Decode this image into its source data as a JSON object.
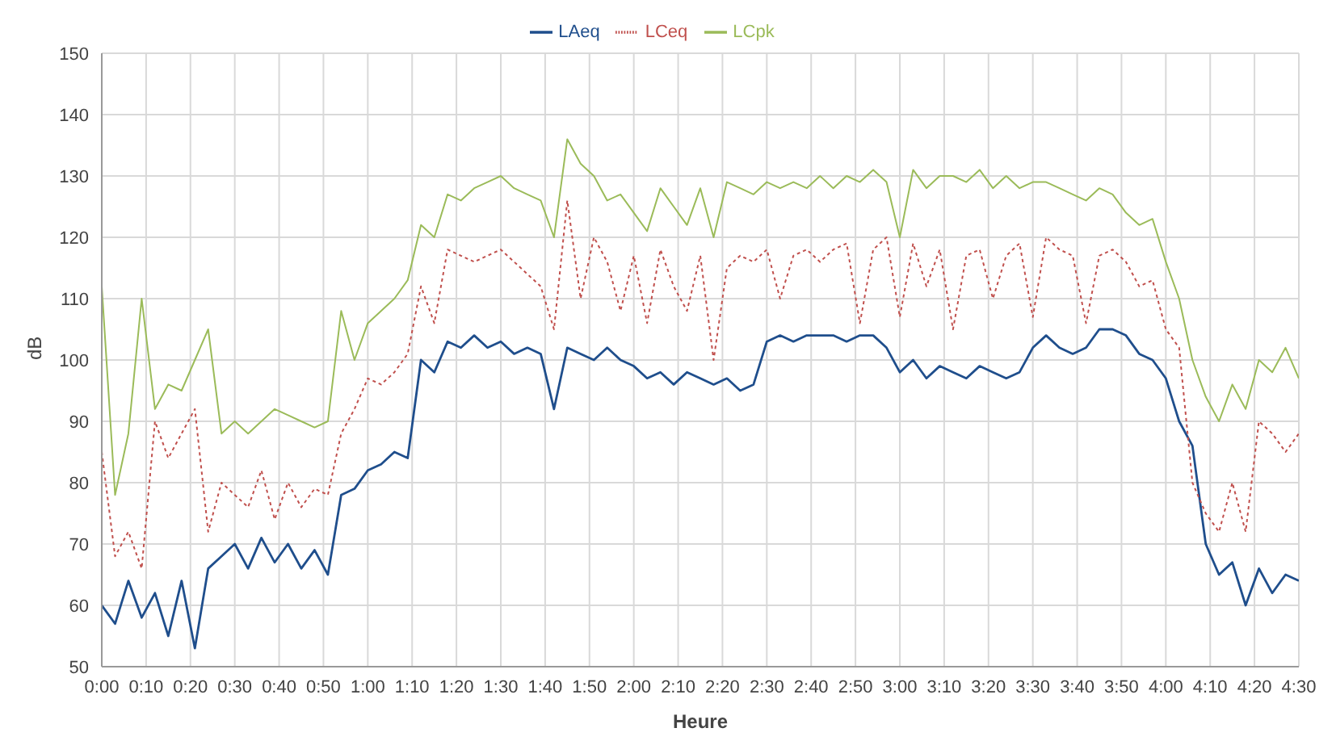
{
  "chart_data": {
    "type": "line",
    "xlabel": "Heure",
    "ylabel": "dB",
    "legend": "top",
    "grid": true,
    "x": [
      0,
      0.05,
      0.1,
      0.15,
      0.2,
      0.25,
      0.3,
      0.35,
      0.4,
      0.45,
      0.5,
      0.55,
      0.6,
      0.65,
      0.7,
      0.75,
      0.8,
      0.85,
      0.9,
      0.95,
      1,
      1.05,
      1.1,
      1.15,
      1.2,
      1.25,
      1.3,
      1.35,
      1.4,
      1.45,
      1.5,
      1.55,
      1.6,
      1.65,
      1.7,
      1.75,
      1.8,
      1.85,
      1.9,
      1.95,
      2,
      2.05,
      2.1,
      2.15,
      2.2,
      2.25,
      2.3,
      2.35,
      2.4,
      2.45,
      2.5,
      2.55,
      2.6,
      2.65,
      2.7,
      2.75,
      2.8,
      2.85,
      2.9,
      2.95,
      3,
      3.05,
      3.1,
      3.15,
      3.2,
      3.25,
      3.3,
      3.35,
      3.4,
      3.45,
      3.5,
      3.55,
      3.6,
      3.65,
      3.7,
      3.75,
      3.8,
      3.85,
      3.9,
      3.95,
      4,
      4.05,
      4.1,
      4.15,
      4.2,
      4.25,
      4.3,
      4.35,
      4.4,
      4.45,
      4.5
    ],
    "series": [
      {
        "name": "LAeq",
        "color": "#1f4e8c",
        "line_style": "solid",
        "values": [
          60,
          57,
          64,
          58,
          62,
          55,
          64,
          53,
          66,
          68,
          70,
          66,
          71,
          67,
          70,
          66,
          69,
          65,
          78,
          79,
          82,
          83,
          85,
          84,
          100,
          98,
          103,
          102,
          104,
          102,
          103,
          101,
          102,
          101,
          92,
          102,
          101,
          100,
          102,
          100,
          99,
          97,
          98,
          96,
          98,
          97,
          96,
          97,
          95,
          96,
          103,
          104,
          103,
          104,
          104,
          104,
          103,
          104,
          104,
          102,
          98,
          100,
          97,
          99,
          98,
          97,
          99,
          98,
          97,
          98,
          102,
          104,
          102,
          101,
          102,
          105,
          105,
          104,
          101,
          100,
          97,
          90,
          86,
          70,
          65,
          67,
          60,
          66,
          62,
          65,
          64
        ]
      },
      {
        "name": "LCeq",
        "color": "#c0504d",
        "line_style": "dotted",
        "values": [
          85,
          68,
          72,
          66,
          90,
          84,
          88,
          92,
          72,
          80,
          78,
          76,
          82,
          74,
          80,
          76,
          79,
          78,
          88,
          92,
          97,
          96,
          98,
          101,
          112,
          106,
          118,
          117,
          116,
          117,
          118,
          116,
          114,
          112,
          105,
          126,
          110,
          120,
          116,
          108,
          117,
          106,
          118,
          112,
          108,
          117,
          100,
          115,
          117,
          116,
          118,
          110,
          117,
          118,
          116,
          118,
          119,
          106,
          118,
          120,
          107,
          119,
          112,
          118,
          105,
          117,
          118,
          110,
          117,
          119,
          107,
          120,
          118,
          117,
          106,
          117,
          118,
          116,
          112,
          113,
          105,
          102,
          80,
          75,
          72,
          80,
          72,
          90,
          88,
          85,
          88
        ]
      },
      {
        "name": "LCpk",
        "color": "#9bbb59",
        "line_style": "solid",
        "values": [
          112,
          78,
          88,
          110,
          92,
          96,
          95,
          100,
          105,
          88,
          90,
          88,
          90,
          92,
          91,
          90,
          89,
          90,
          108,
          100,
          106,
          108,
          110,
          113,
          122,
          120,
          127,
          126,
          128,
          129,
          130,
          128,
          127,
          126,
          120,
          136,
          132,
          130,
          126,
          127,
          124,
          121,
          128,
          125,
          122,
          128,
          120,
          129,
          128,
          127,
          129,
          128,
          129,
          128,
          130,
          128,
          130,
          129,
          131,
          129,
          120,
          131,
          128,
          130,
          130,
          129,
          131,
          128,
          130,
          128,
          129,
          129,
          128,
          127,
          126,
          128,
          127,
          124,
          122,
          123,
          116,
          110,
          100,
          94,
          90,
          96,
          92,
          100,
          98,
          102,
          97
        ]
      }
    ],
    "xlim": [
      0,
      4.5
    ],
    "xticks": [
      {
        "value": 0,
        "label": "0:00"
      },
      {
        "value": 0.1667,
        "label": "0:10"
      },
      {
        "value": 0.3333,
        "label": "0:20"
      },
      {
        "value": 0.5,
        "label": "0:30"
      },
      {
        "value": 0.6667,
        "label": "0:40"
      },
      {
        "value": 0.8333,
        "label": "0:50"
      },
      {
        "value": 1,
        "label": "1:00"
      },
      {
        "value": 1.1667,
        "label": "1:10"
      },
      {
        "value": 1.3333,
        "label": "1:20"
      },
      {
        "value": 1.5,
        "label": "1:30"
      },
      {
        "value": 1.6667,
        "label": "1:40"
      },
      {
        "value": 1.8333,
        "label": "1:50"
      },
      {
        "value": 2,
        "label": "2:00"
      },
      {
        "value": 2.1667,
        "label": "2:10"
      },
      {
        "value": 2.3333,
        "label": "2:20"
      },
      {
        "value": 2.5,
        "label": "2:30"
      },
      {
        "value": 2.6667,
        "label": "2:40"
      },
      {
        "value": 2.8333,
        "label": "2:50"
      },
      {
        "value": 3,
        "label": "3:00"
      },
      {
        "value": 3.1667,
        "label": "3:10"
      },
      {
        "value": 3.3333,
        "label": "3:20"
      },
      {
        "value": 3.5,
        "label": "3:30"
      },
      {
        "value": 3.6667,
        "label": "3:40"
      },
      {
        "value": 3.8333,
        "label": "3:50"
      },
      {
        "value": 4,
        "label": "4:00"
      },
      {
        "value": 4.1667,
        "label": "4:10"
      },
      {
        "value": 4.3333,
        "label": "4:20"
      },
      {
        "value": 4.5,
        "label": "4:30"
      }
    ],
    "ylim": [
      50,
      150
    ],
    "yticks": [
      50,
      60,
      70,
      80,
      90,
      100,
      110,
      120,
      130,
      140,
      150
    ]
  }
}
